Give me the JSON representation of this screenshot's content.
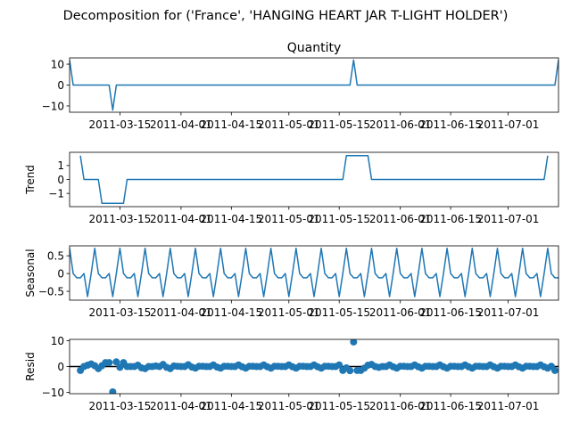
{
  "figure": {
    "suptitle": "Decomposition for ('France', 'HANGING HEART JAR T-LIGHT HOLDER')"
  },
  "chart_data": [
    {
      "type": "line",
      "panel": "observed",
      "title": "Quantity",
      "ylabel": "",
      "x_start": "2011-03-01",
      "n": 136,
      "x_ticks": [
        "2011-03-15",
        "2011-04-01",
        "2011-04-15",
        "2011-05-01",
        "2011-05-15",
        "2011-06-01",
        "2011-06-15",
        "2011-07-01"
      ],
      "x_tick_labels": [
        "2011-03-15",
        "2011-04-01",
        "2011-04-15",
        "2011-05-01",
        "2011-05-15",
        "2011-06-01",
        "2011-06-15",
        "2011-07-01"
      ],
      "y_ticks": [
        -10,
        0,
        10
      ],
      "ylim": [
        -13,
        13
      ],
      "baseline": 0,
      "points": [
        [
          0,
          12
        ],
        [
          1,
          0
        ],
        [
          11,
          0
        ],
        [
          12,
          -12
        ],
        [
          13,
          0
        ],
        [
          78,
          0
        ],
        [
          79,
          12
        ],
        [
          80,
          0
        ],
        [
          135,
          0
        ],
        [
          136,
          12
        ]
      ],
      "color": "#1f77b4"
    },
    {
      "type": "line",
      "panel": "trend",
      "title": "",
      "ylabel": "Trend",
      "x_start": "2011-03-01",
      "x_ticks": [
        "2011-03-15",
        "2011-04-01",
        "2011-04-15",
        "2011-05-01",
        "2011-05-15",
        "2011-06-01",
        "2011-06-15",
        "2011-07-01"
      ],
      "x_tick_labels": [
        "2011-03-15",
        "2011-04-01",
        "2011-04-15",
        "2011-05-01",
        "2011-05-15",
        "2011-06-01",
        "2011-06-15",
        "2011-07-01"
      ],
      "y_ticks": [
        -1,
        0,
        1
      ],
      "ylim": [
        -1.95,
        1.95
      ],
      "points": [
        [
          3,
          1.71
        ],
        [
          4,
          0
        ],
        [
          8,
          0
        ],
        [
          9,
          -1.71
        ],
        [
          15,
          -1.71
        ],
        [
          16,
          0
        ],
        [
          76,
          0
        ],
        [
          77,
          1.71
        ],
        [
          83,
          1.71
        ],
        [
          84,
          0
        ],
        [
          132,
          0
        ],
        [
          133,
          1.71
        ]
      ],
      "color": "#1f77b4"
    },
    {
      "type": "line",
      "panel": "seasonal",
      "title": "",
      "ylabel": "Seasonal",
      "x_start": "2011-03-01",
      "period": 7,
      "pattern": [
        0.0,
        0.71,
        0.0,
        -0.12,
        -0.12,
        0.0,
        -0.65
      ],
      "pattern_offset": 1,
      "x_ticks": [
        "2011-03-15",
        "2011-04-01",
        "2011-04-15",
        "2011-05-01",
        "2011-05-15",
        "2011-06-01",
        "2011-06-15",
        "2011-07-01"
      ],
      "x_tick_labels": [
        "2011-03-15",
        "2011-04-01",
        "2011-04-15",
        "2011-05-01",
        "2011-05-15",
        "2011-06-01",
        "2011-06-15",
        "2011-07-01"
      ],
      "y_ticks": [
        -0.5,
        0.0,
        0.5
      ],
      "ylim": [
        -0.75,
        0.78
      ],
      "color": "#1f77b4"
    },
    {
      "type": "scatter",
      "panel": "resid",
      "title": "",
      "ylabel": "Resid",
      "x_start": "2011-03-01",
      "x_ticks": [
        "2011-03-15",
        "2011-04-01",
        "2011-04-15",
        "2011-05-01",
        "2011-05-15",
        "2011-06-01",
        "2011-06-15",
        "2011-07-01"
      ],
      "x_tick_labels": [
        "2011-03-15",
        "2011-04-01",
        "2011-04-15",
        "2011-05-01",
        "2011-05-15",
        "2011-06-01",
        "2011-06-15",
        "2011-07-01"
      ],
      "y_ticks": [
        -10,
        0,
        10
      ],
      "ylim": [
        -10.5,
        10.5
      ],
      "baseline": 0,
      "color": "#1f77b4",
      "points": [
        [
          3,
          -1.5
        ],
        [
          4,
          0
        ],
        [
          5,
          0.5
        ],
        [
          6,
          1
        ],
        [
          7,
          0.3
        ],
        [
          8,
          -0.8
        ],
        [
          9,
          0.3
        ],
        [
          10,
          1.5
        ],
        [
          11,
          1.5
        ],
        [
          12,
          -9.8
        ],
        [
          13,
          1.8
        ],
        [
          14,
          -0.3
        ],
        [
          15,
          1.5
        ],
        [
          16,
          0
        ],
        [
          17,
          0
        ],
        [
          18,
          0
        ],
        [
          19,
          0.5
        ],
        [
          20,
          -0.5
        ],
        [
          21,
          -0.8
        ],
        [
          22,
          0
        ],
        [
          23,
          0
        ],
        [
          24,
          0.2
        ],
        [
          25,
          0
        ],
        [
          26,
          0.8
        ],
        [
          27,
          -0.3
        ],
        [
          28,
          -0.8
        ],
        [
          29,
          0.2
        ],
        [
          30,
          0.1
        ],
        [
          31,
          0
        ],
        [
          32,
          0
        ],
        [
          33,
          0.7
        ],
        [
          34,
          -0.2
        ],
        [
          35,
          -0.6
        ],
        [
          36,
          0.1
        ],
        [
          37,
          0.1
        ],
        [
          38,
          0
        ],
        [
          39,
          0
        ],
        [
          40,
          0.6
        ],
        [
          41,
          -0.2
        ],
        [
          42,
          -0.6
        ],
        [
          43,
          0.1
        ],
        [
          44,
          0.1
        ],
        [
          45,
          0
        ],
        [
          46,
          0
        ],
        [
          47,
          0.6
        ],
        [
          48,
          -0.1
        ],
        [
          49,
          -0.6
        ],
        [
          50,
          0.1
        ],
        [
          51,
          0.1
        ],
        [
          52,
          0
        ],
        [
          53,
          0
        ],
        [
          54,
          0.6
        ],
        [
          55,
          -0.1
        ],
        [
          56,
          -0.6
        ],
        [
          57,
          0.1
        ],
        [
          58,
          0.1
        ],
        [
          59,
          0
        ],
        [
          60,
          0
        ],
        [
          61,
          0.6
        ],
        [
          62,
          -0.1
        ],
        [
          63,
          -0.6
        ],
        [
          64,
          0.1
        ],
        [
          65,
          0.1
        ],
        [
          66,
          0
        ],
        [
          67,
          0
        ],
        [
          68,
          0.6
        ],
        [
          69,
          -0.1
        ],
        [
          70,
          -0.6
        ],
        [
          71,
          0.1
        ],
        [
          72,
          0.1
        ],
        [
          73,
          0
        ],
        [
          74,
          0
        ],
        [
          75,
          0.6
        ],
        [
          76,
          -1.5
        ],
        [
          77,
          -0.5
        ],
        [
          78,
          -1.6
        ],
        [
          79,
          9.5
        ],
        [
          80,
          -1.5
        ],
        [
          81,
          -1.5
        ],
        [
          82,
          -0.6
        ],
        [
          83,
          0.5
        ],
        [
          84,
          0.8
        ],
        [
          85,
          0
        ],
        [
          86,
          -0.3
        ],
        [
          87,
          0
        ],
        [
          88,
          0
        ],
        [
          89,
          0.6
        ],
        [
          90,
          -0.1
        ],
        [
          91,
          -0.6
        ],
        [
          92,
          0.1
        ],
        [
          93,
          0.1
        ],
        [
          94,
          0
        ],
        [
          95,
          0
        ],
        [
          96,
          0.6
        ],
        [
          97,
          -0.1
        ],
        [
          98,
          -0.6
        ],
        [
          99,
          0.1
        ],
        [
          100,
          0.1
        ],
        [
          101,
          0
        ],
        [
          102,
          0
        ],
        [
          103,
          0.6
        ],
        [
          104,
          -0.1
        ],
        [
          105,
          -0.6
        ],
        [
          106,
          0.1
        ],
        [
          107,
          0.1
        ],
        [
          108,
          0
        ],
        [
          109,
          0
        ],
        [
          110,
          0.6
        ],
        [
          111,
          -0.1
        ],
        [
          112,
          -0.6
        ],
        [
          113,
          0.1
        ],
        [
          114,
          0.1
        ],
        [
          115,
          0
        ],
        [
          116,
          0
        ],
        [
          117,
          0.6
        ],
        [
          118,
          -0.1
        ],
        [
          119,
          -0.6
        ],
        [
          120,
          0.1
        ],
        [
          121,
          0.1
        ],
        [
          122,
          0
        ],
        [
          123,
          0
        ],
        [
          124,
          0.6
        ],
        [
          125,
          -0.1
        ],
        [
          126,
          -0.6
        ],
        [
          127,
          0.1
        ],
        [
          128,
          0.1
        ],
        [
          129,
          0
        ],
        [
          130,
          0
        ],
        [
          131,
          0.6
        ],
        [
          132,
          -0.1
        ],
        [
          133,
          -0.6
        ],
        [
          134,
          0.1
        ],
        [
          135,
          -1.5
        ]
      ]
    }
  ]
}
